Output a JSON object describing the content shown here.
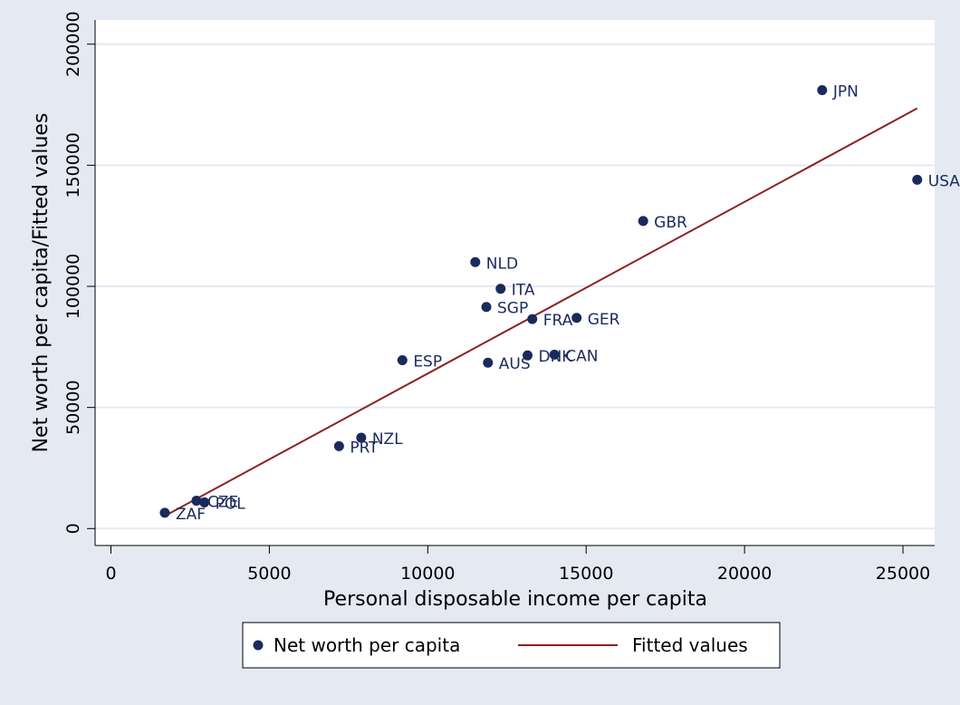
{
  "chart_data": {
    "type": "scatter",
    "title": "",
    "xlabel": "Personal disposable income per capita",
    "ylabel": "Net worth per capita/Fitted values",
    "xlim": [
      -500,
      26000
    ],
    "ylim": [
      -7000,
      210000
    ],
    "x_ticks": [
      0,
      5000,
      10000,
      15000,
      20000,
      25000
    ],
    "y_ticks": [
      0,
      50000,
      100000,
      150000,
      200000
    ],
    "grid": true,
    "legend_position": "bottom",
    "colors": {
      "points": "#1a2a5c",
      "fit": "#8b2323",
      "background": "#e5e9f2",
      "plot_bg": "#ffffff",
      "grid": "#e5e9f2"
    },
    "series": [
      {
        "name": "Net worth per capita",
        "kind": "scatter",
        "points": [
          {
            "label": "JPN",
            "x": 22450,
            "y": 181000
          },
          {
            "label": "USA",
            "x": 25450,
            "y": 144000
          },
          {
            "label": "GBR",
            "x": 16800,
            "y": 127000
          },
          {
            "label": "NLD",
            "x": 11500,
            "y": 110000
          },
          {
            "label": "ITA",
            "x": 12300,
            "y": 99000
          },
          {
            "label": "SGP",
            "x": 11850,
            "y": 91500
          },
          {
            "label": "FRA",
            "x": 13300,
            "y": 86500
          },
          {
            "label": "GER",
            "x": 14700,
            "y": 87000
          },
          {
            "label": "DNK",
            "x": 13150,
            "y": 71500
          },
          {
            "label": "CAN",
            "x": 14000,
            "y": 71800
          },
          {
            "label": "ESP",
            "x": 9200,
            "y": 69500
          },
          {
            "label": "AUS",
            "x": 11900,
            "y": 68500
          },
          {
            "label": "NZL",
            "x": 7900,
            "y": 37500
          },
          {
            "label": "PRT",
            "x": 7200,
            "y": 34000
          },
          {
            "label": "CZE",
            "x": 2700,
            "y": 11500
          },
          {
            "label": "POL",
            "x": 2950,
            "y": 10800
          },
          {
            "label": "ZAF",
            "x": 1700,
            "y": 6500
          }
        ]
      },
      {
        "name": "Fitted values",
        "kind": "line",
        "x": [
          1700,
          25450
        ],
        "y": [
          5200,
          173500
        ]
      }
    ]
  }
}
